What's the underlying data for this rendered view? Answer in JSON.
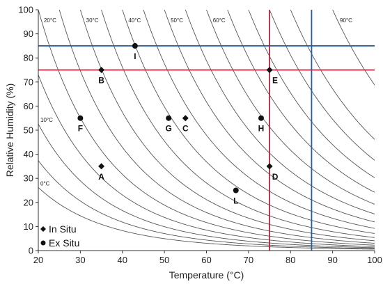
{
  "chart_data": {
    "type": "scatter",
    "xlabel": "Temperature (°C)",
    "ylabel": "Relative Humidity (%)",
    "xlim": [
      20,
      100
    ],
    "ylim": [
      0,
      100
    ],
    "xticks": [
      "20",
      "30",
      "40",
      "50",
      "60",
      "70",
      "80",
      "90",
      "100"
    ],
    "yticks": [
      "0",
      "10",
      "20",
      "30",
      "40",
      "50",
      "60",
      "70",
      "80",
      "90",
      "100"
    ],
    "grid": false,
    "legend_position": "bottom-left",
    "series": [
      {
        "name": "In Situ",
        "marker": "diamond",
        "points": [
          {
            "label": "A",
            "x": 35,
            "y": 35
          },
          {
            "label": "B",
            "x": 35,
            "y": 75
          },
          {
            "label": "C",
            "x": 55,
            "y": 55
          },
          {
            "label": "D",
            "x": 75,
            "y": 35
          },
          {
            "label": "E",
            "x": 75,
            "y": 75
          }
        ]
      },
      {
        "name": "Ex Situ",
        "marker": "circle",
        "points": [
          {
            "label": "F",
            "x": 30,
            "y": 55
          },
          {
            "label": "G",
            "x": 51,
            "y": 55
          },
          {
            "label": "H",
            "x": 73,
            "y": 55
          },
          {
            "label": "I",
            "x": 43,
            "y": 85
          },
          {
            "label": "L",
            "x": 67,
            "y": 25
          }
        ]
      }
    ],
    "reference_lines": [
      {
        "axis": "y",
        "value": 85,
        "color": "#1f5fa8"
      },
      {
        "axis": "y",
        "value": 75,
        "color": "#d0203a"
      },
      {
        "axis": "x",
        "value": 75,
        "color": "#c0203a"
      },
      {
        "axis": "x",
        "value": 85,
        "color": "#1f5fa8"
      }
    ],
    "dew_point_isolines": [
      {
        "label": "0°C",
        "dew_point": 0
      },
      {
        "label": "",
        "dew_point": 5
      },
      {
        "label": "10°C",
        "dew_point": 10
      },
      {
        "label": "",
        "dew_point": 15
      },
      {
        "label": "20°C",
        "dew_point": 20
      },
      {
        "label": "",
        "dew_point": 25
      },
      {
        "label": "30°C",
        "dew_point": 30
      },
      {
        "label": "",
        "dew_point": 35
      },
      {
        "label": "40°C",
        "dew_point": 40
      },
      {
        "label": "",
        "dew_point": 45
      },
      {
        "label": "50°C",
        "dew_point": 50
      },
      {
        "label": "",
        "dew_point": 55
      },
      {
        "label": "60°C",
        "dew_point": 60
      },
      {
        "label": "",
        "dew_point": 65
      },
      {
        "label": "",
        "dew_point": 70
      },
      {
        "label": "",
        "dew_point": 75
      },
      {
        "label": "",
        "dew_point": 80
      },
      {
        "label": "90°C",
        "dew_point": 90
      }
    ],
    "isoline_color": "#555555"
  }
}
